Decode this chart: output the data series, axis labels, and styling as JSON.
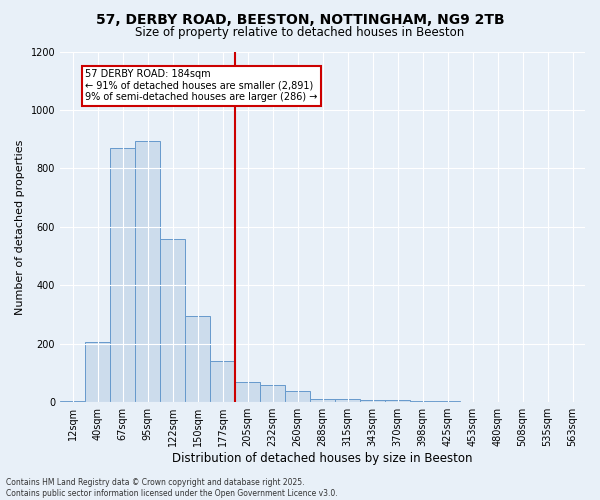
{
  "title": "57, DERBY ROAD, BEESTON, NOTTINGHAM, NG9 2TB",
  "subtitle": "Size of property relative to detached houses in Beeston",
  "xlabel": "Distribution of detached houses by size in Beeston",
  "ylabel": "Number of detached properties",
  "footnote": "Contains HM Land Registry data © Crown copyright and database right 2025.\nContains public sector information licensed under the Open Government Licence v3.0.",
  "categories": [
    "12sqm",
    "40sqm",
    "67sqm",
    "95sqm",
    "122sqm",
    "150sqm",
    "177sqm",
    "205sqm",
    "232sqm",
    "260sqm",
    "288sqm",
    "315sqm",
    "343sqm",
    "370sqm",
    "398sqm",
    "425sqm",
    "453sqm",
    "480sqm",
    "508sqm",
    "535sqm",
    "563sqm"
  ],
  "values": [
    5,
    205,
    870,
    895,
    560,
    295,
    140,
    70,
    60,
    40,
    10,
    12,
    8,
    6,
    4,
    3,
    2,
    1,
    1,
    0,
    2
  ],
  "bar_color": "#ccdcec",
  "bar_edge_color": "#6699cc",
  "red_line_index": 6,
  "red_line_color": "#cc0000",
  "annotation_text": "57 DERBY ROAD: 184sqm\n← 91% of detached houses are smaller (2,891)\n9% of semi-detached houses are larger (286) →",
  "annotation_box_color": "#cc0000",
  "ylim": [
    0,
    1200
  ],
  "yticks": [
    0,
    200,
    400,
    600,
    800,
    1000,
    1200
  ],
  "bg_color": "#e8f0f8",
  "plot_bg_color": "#e8f0f8",
  "title_fontsize": 10,
  "subtitle_fontsize": 8.5,
  "ylabel_fontsize": 8,
  "xlabel_fontsize": 8.5,
  "footnote_fontsize": 5.5,
  "tick_fontsize": 7
}
